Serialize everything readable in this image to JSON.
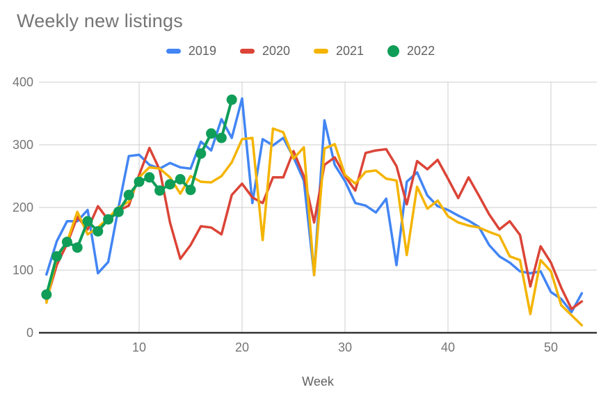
{
  "title": "Weekly new listings",
  "legend": [
    {
      "label": "2019",
      "color": "#4285F4",
      "marker": "line"
    },
    {
      "label": "2020",
      "color": "#DB4437",
      "marker": "line"
    },
    {
      "label": "2021",
      "color": "#F4B400",
      "marker": "line"
    },
    {
      "label": "2022",
      "color": "#0F9D58",
      "marker": "circle"
    }
  ],
  "colors": {
    "grid": "#cccccc",
    "axis_line": "#333333",
    "tick_label": "#757575",
    "axis_title": "#616161",
    "title": "#757575"
  },
  "chart_data": {
    "type": "line",
    "title": "Weekly new listings",
    "xlabel": "Week",
    "ylabel": "",
    "x_start": 1,
    "xlim": [
      1,
      53
    ],
    "ylim": [
      0,
      400
    ],
    "x_ticks": [
      10,
      20,
      30,
      40,
      50
    ],
    "y_ticks": [
      0,
      100,
      200,
      300,
      400
    ],
    "grid": true,
    "legend_position": "top-center",
    "series": [
      {
        "name": "2019",
        "color": "#4285F4",
        "style": "line",
        "values": [
          93,
          146,
          178,
          178,
          196,
          95,
          113,
          200,
          282,
          284,
          268,
          262,
          271,
          264,
          262,
          305,
          291,
          341,
          311,
          374,
          207,
          309,
          299,
          311,
          280,
          243,
          92,
          339,
          268,
          242,
          207,
          203,
          192,
          214,
          108,
          241,
          256,
          219,
          202,
          196,
          187,
          179,
          169,
          140,
          122,
          112,
          98,
          95,
          98,
          65,
          54,
          33,
          63
        ]
      },
      {
        "name": "2020",
        "color": "#DB4437",
        "style": "line",
        "values": [
          52,
          108,
          142,
          185,
          165,
          202,
          180,
          195,
          203,
          252,
          295,
          260,
          176,
          118,
          140,
          170,
          168,
          157,
          220,
          238,
          216,
          207,
          248,
          248,
          290,
          250,
          176,
          268,
          280,
          250,
          227,
          287,
          291,
          293,
          266,
          205,
          274,
          261,
          276,
          246,
          215,
          248,
          219,
          189,
          165,
          178,
          156,
          74,
          138,
          112,
          72,
          38,
          50
        ]
      },
      {
        "name": "2021",
        "color": "#F4B400",
        "style": "line",
        "values": [
          48,
          120,
          145,
          193,
          157,
          168,
          183,
          200,
          209,
          248,
          264,
          262,
          248,
          222,
          250,
          241,
          240,
          250,
          272,
          309,
          311,
          148,
          326,
          320,
          278,
          296,
          92,
          294,
          301,
          252,
          238,
          257,
          259,
          246,
          243,
          124,
          233,
          198,
          211,
          186,
          176,
          171,
          168,
          161,
          155,
          122,
          116,
          30,
          116,
          98,
          44,
          28,
          12
        ]
      },
      {
        "name": "2022",
        "color": "#0F9D58",
        "style": "line+markers",
        "values": [
          61,
          122,
          145,
          136,
          178,
          162,
          181,
          193,
          220,
          241,
          248,
          227,
          237,
          245,
          228,
          286,
          318,
          311,
          372
        ]
      }
    ]
  }
}
